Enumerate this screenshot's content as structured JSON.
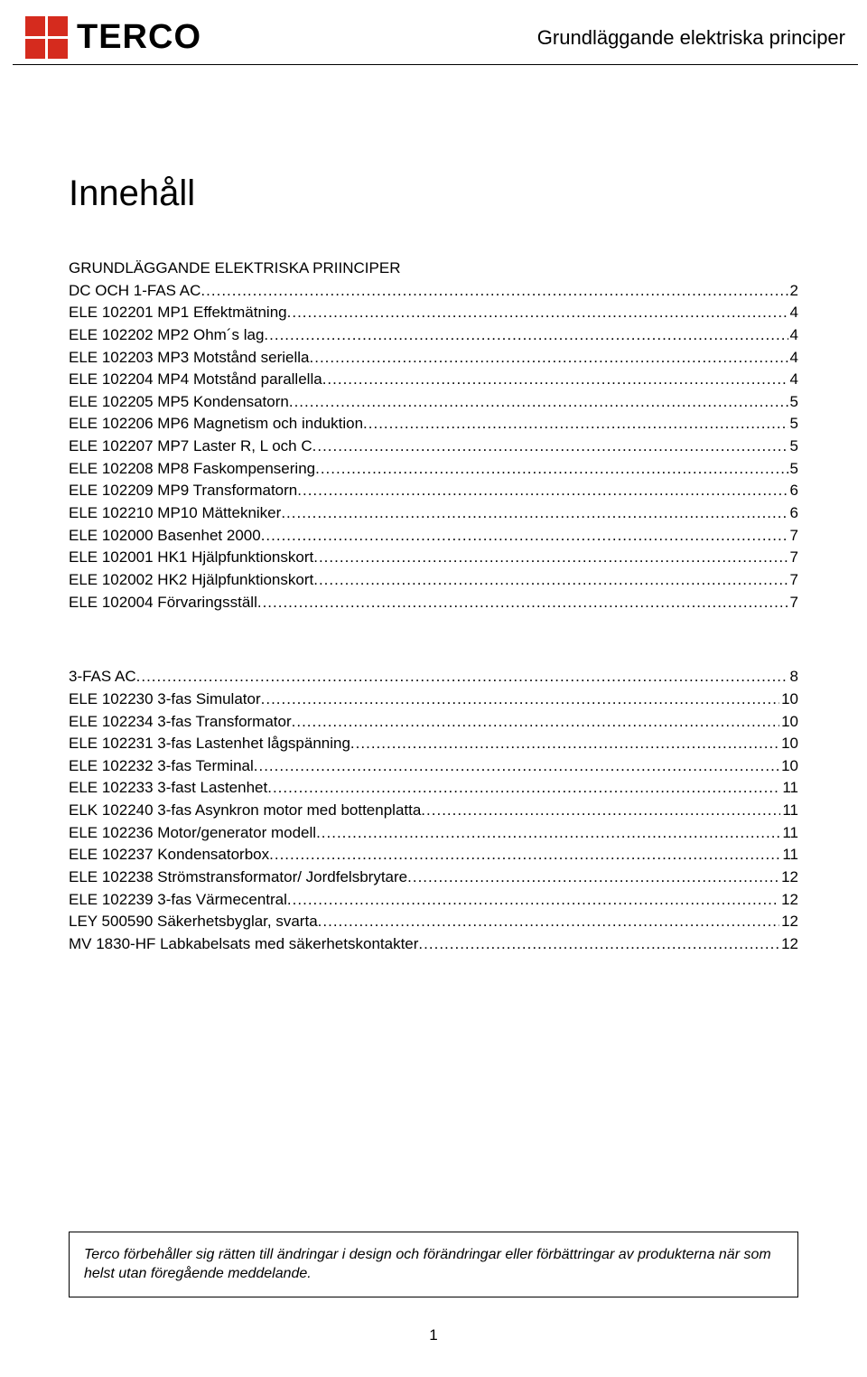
{
  "header": {
    "logo_text": "TERCO",
    "title": "Grundläggande elektriska principer"
  },
  "doc_title": "Innehåll",
  "section1_title": "GRUNDLÄGGANDE ELEKTRISKA PRIINCIPER",
  "section1": [
    {
      "label": "DC OCH 1-FAS AC",
      "page": "2"
    },
    {
      "label": "ELE 102201 MP1 Effektmätning",
      "page": "4"
    },
    {
      "label": "ELE 102202 MP2 Ohm´s lag",
      "page": "4"
    },
    {
      "label": "ELE 102203 MP3 Motstånd seriella",
      "page": "4"
    },
    {
      "label": "ELE 102204 MP4 Motstånd parallella",
      "page": "4"
    },
    {
      "label": "ELE 102205 MP5 Kondensatorn",
      "page": "5"
    },
    {
      "label": "ELE 102206 MP6 Magnetism och induktion",
      "page": "5"
    },
    {
      "label": "ELE 102207 MP7 Laster R, L och C",
      "page": "5"
    },
    {
      "label": "ELE 102208 MP8 Faskompensering",
      "page": "5"
    },
    {
      "label": "ELE 102209 MP9 Transformatorn",
      "page": "6"
    },
    {
      "label": "ELE 102210 MP10 Mättekniker",
      "page": "6"
    },
    {
      "label": "ELE 102000 Basenhet 2000",
      "page": "7"
    },
    {
      "label": "ELE 102001 HK1 Hjälpfunktionskort",
      "page": "7"
    },
    {
      "label": "ELE 102002 HK2 Hjälpfunktionskort",
      "page": "7"
    },
    {
      "label": "ELE 102004 Förvaringsställ",
      "page": "7"
    }
  ],
  "section2": [
    {
      "label": "3-FAS AC",
      "page": "8"
    },
    {
      "label": "ELE 102230  3-fas Simulator ",
      "page": "10"
    },
    {
      "label": "ELE 102234  3-fas Transformator",
      "page": "10"
    },
    {
      "label": "ELE 102231  3-fas Lastenhet lågspänning",
      "page": "10"
    },
    {
      "label": "ELE 102232  3-fas Terminal",
      "page": "10"
    },
    {
      "label": "ELE 102233  3-fast Lastenhet",
      "page": "11"
    },
    {
      "label": "ELK 102240  3-fas Asynkron motor med bottenplatta",
      "page": "11"
    },
    {
      "label": "ELE 102236  Motor/generator modell",
      "page": "11"
    },
    {
      "label": "ELE 102237  Kondensatorbox",
      "page": "11"
    },
    {
      "label": "ELE 102238  Strömstransformator/ Jordfelsbrytare",
      "page": "12"
    },
    {
      "label": "ELE 102239  3-fas Värmecentral",
      "page": "12"
    },
    {
      "label": "LEY 500590  Säkerhetsbyglar, svarta",
      "page": "12"
    },
    {
      "label": "MV 1830-HF Labkabelsats med säkerhetskontakter",
      "page": "12"
    }
  ],
  "footer_note": "Terco förbehåller sig rätten till ändringar i design och förändringar eller förbättringar av produkterna när som helst utan föregående meddelande.",
  "page_number": "1"
}
